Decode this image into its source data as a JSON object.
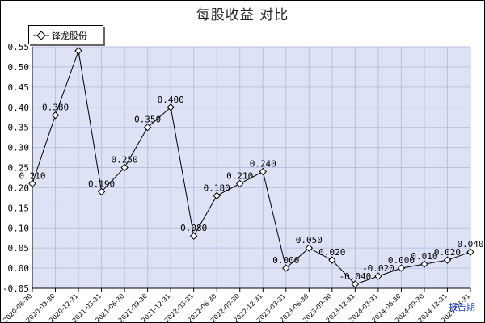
{
  "chart_data": {
    "type": "line",
    "title": "每股收益  对比",
    "legend": {
      "entries": [
        "锋龙股份"
      ],
      "placement": "top-left"
    },
    "x": [
      "2020-06-30",
      "2020-09-30",
      "2020-12-31",
      "2021-03-31",
      "2021-06-30",
      "2021-09-30",
      "2021-12-31",
      "2022-03-31",
      "2022-06-30",
      "2022-09-30",
      "2022-12-31",
      "2023-03-31",
      "2023-06-30",
      "2023-09-30",
      "2023-12-31",
      "2024-03-31",
      "2024-06-30",
      "2024-09-30",
      "2024-12-31",
      "2025-03-31"
    ],
    "x_tick_labels": [
      "2020-06-30",
      "2020-09-30",
      "2020-12-31",
      "2021-03-31",
      "2021-06-30",
      "2021-09-30",
      "2021-12-31",
      "2022-03-31",
      "2022-06-30",
      "2022-09-30",
      "2022-12-31",
      "2023-03-31",
      "2023-06-30",
      "2023-09-30",
      "2023-12-31",
      "2024-03-31",
      "2024-06-30",
      "2024-09-30",
      "2024-12-31",
      "2025-03-31"
    ],
    "series": [
      {
        "name": "锋龙股份",
        "color": "#000000",
        "values": [
          0.21,
          0.38,
          0.54,
          0.19,
          0.25,
          0.35,
          0.4,
          0.08,
          0.18,
          0.21,
          0.24,
          0.0,
          0.05,
          0.02,
          -0.04,
          -0.02,
          0.0,
          0.01,
          0.02,
          0.04
        ],
        "labels": [
          "0.210",
          "0.380",
          "",
          "0.190",
          "0.250",
          "0.350",
          "0.400",
          "0.080",
          "0.180",
          "0.210",
          "0.240",
          "0.000",
          "0.050",
          "0.020",
          "-0.040",
          "-0.020",
          "0.000",
          "0.010",
          "0.020",
          "0.040"
        ]
      }
    ],
    "ylim": [
      -0.05,
      0.55
    ],
    "yticks": [
      "-0.05",
      "0.00",
      "0.05",
      "0.10",
      "0.15",
      "0.20",
      "0.25",
      "0.30",
      "0.35",
      "0.40",
      "0.45",
      "0.50",
      "0.55"
    ],
    "grid": true,
    "colors": {
      "plot_bg": "#dde3f5",
      "grid": "#b8c2e0",
      "line": "#000000"
    }
  },
  "footer": {
    "label": "报告期"
  }
}
